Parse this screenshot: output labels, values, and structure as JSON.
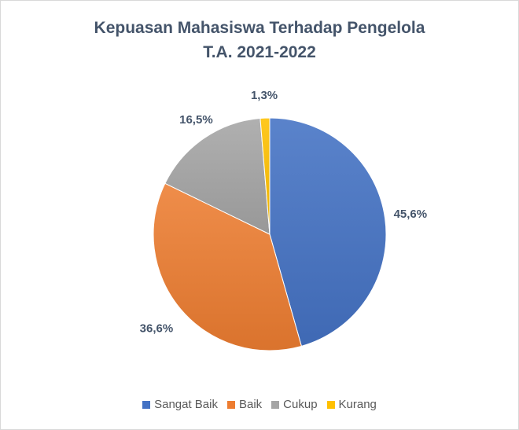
{
  "chart_data": {
    "type": "pie",
    "title_lines": [
      "Kepuasan Mahasiswa Terhadap Pengelola",
      "T.A. 2021-2022"
    ],
    "categories": [
      "Sangat Baik",
      "Baik",
      "Cukup",
      "Kurang"
    ],
    "values": [
      45.6,
      36.6,
      16.5,
      1.3
    ],
    "data_labels": [
      "45,6%",
      "36,6%",
      "16,5%",
      "1,3%"
    ],
    "colors": [
      "#4472c4",
      "#ed7d31",
      "#a5a5a5",
      "#ffc000"
    ],
    "legend_position": "bottom",
    "start_angle_deg": 0,
    "direction": "clockwise"
  }
}
